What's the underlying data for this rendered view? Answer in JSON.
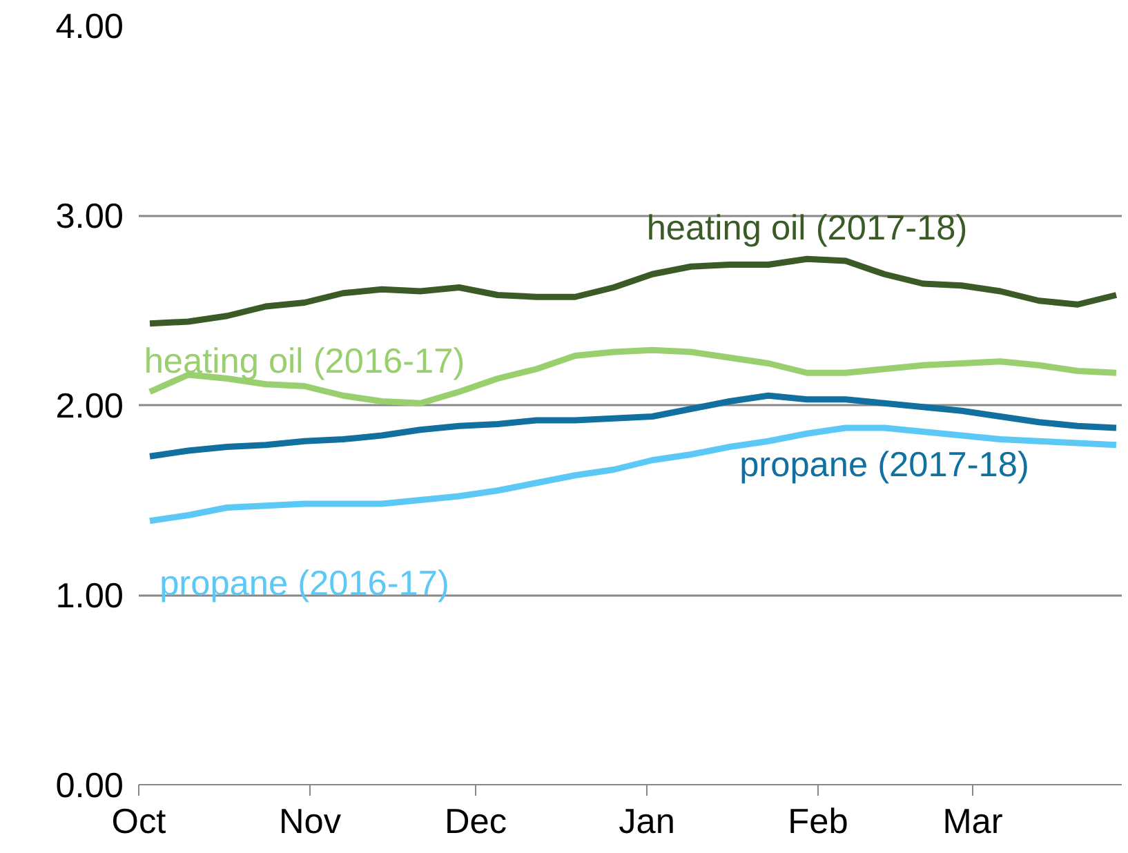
{
  "chart_data": {
    "type": "line",
    "x": [
      "2016-10-03",
      "2016-10-10",
      "2016-10-17",
      "2016-10-24",
      "2016-10-31",
      "2016-11-07",
      "2016-11-14",
      "2016-11-21",
      "2016-11-28",
      "2016-12-05",
      "2016-12-12",
      "2016-12-19",
      "2016-12-26",
      "2017-01-02",
      "2017-01-09",
      "2017-01-16",
      "2017-01-23",
      "2017-01-30",
      "2017-02-06",
      "2017-02-13",
      "2017-02-20",
      "2017-02-27",
      "2017-03-06",
      "2017-03-13",
      "2017-03-20",
      "2017-03-27"
    ],
    "series": [
      {
        "name": "heating oil (2017-18)",
        "color": "#3a5a26",
        "values": [
          2.43,
          2.44,
          2.47,
          2.52,
          2.54,
          2.59,
          2.61,
          2.6,
          2.62,
          2.58,
          2.57,
          2.57,
          2.62,
          2.69,
          2.73,
          2.74,
          2.74,
          2.77,
          2.76,
          2.69,
          2.64,
          2.63,
          2.6,
          2.55,
          2.53,
          2.58
        ]
      },
      {
        "name": "heating oil (2016-17)",
        "color": "#99cf6e",
        "values": [
          2.07,
          2.16,
          2.14,
          2.11,
          2.1,
          2.05,
          2.02,
          2.01,
          2.07,
          2.14,
          2.19,
          2.26,
          2.28,
          2.29,
          2.28,
          2.25,
          2.22,
          2.17,
          2.17,
          2.19,
          2.21,
          2.22,
          2.23,
          2.21,
          2.18,
          2.17
        ]
      },
      {
        "name": "propane (2017-18)",
        "color": "#11709f",
        "values": [
          1.73,
          1.76,
          1.78,
          1.79,
          1.81,
          1.82,
          1.84,
          1.87,
          1.89,
          1.9,
          1.92,
          1.92,
          1.93,
          1.94,
          1.98,
          2.02,
          2.05,
          2.03,
          2.03,
          2.01,
          1.99,
          1.97,
          1.94,
          1.91,
          1.89,
          1.88
        ]
      },
      {
        "name": "propane (2016-17)",
        "color": "#5cc8f5",
        "values": [
          1.39,
          1.42,
          1.46,
          1.47,
          1.48,
          1.48,
          1.48,
          1.5,
          1.52,
          1.55,
          1.59,
          1.63,
          1.66,
          1.71,
          1.74,
          1.78,
          1.81,
          1.85,
          1.88,
          1.88,
          1.86,
          1.84,
          1.82,
          1.81,
          1.8,
          1.79
        ]
      }
    ],
    "xlim": [
      "2016-10-01",
      "2017-03-28"
    ],
    "xticks": [
      {
        "value": "2016-10-01",
        "label": "Oct"
      },
      {
        "value": "2016-11-01",
        "label": "Nov"
      },
      {
        "value": "2016-12-01",
        "label": "Dec"
      },
      {
        "value": "2017-01-01",
        "label": "Jan"
      },
      {
        "value": "2017-02-01",
        "label": "Feb"
      },
      {
        "value": "2017-03-01",
        "label": "Mar"
      }
    ],
    "ylim": [
      0,
      4
    ],
    "yticks": [
      {
        "value": 0,
        "label": "0.00"
      },
      {
        "value": 1,
        "label": "1.00"
      },
      {
        "value": 2,
        "label": "2.00"
      },
      {
        "value": 3,
        "label": "3.00"
      },
      {
        "value": 4,
        "label": "4.00"
      }
    ],
    "grid": "y",
    "line_style": "solid",
    "marker": "none"
  }
}
